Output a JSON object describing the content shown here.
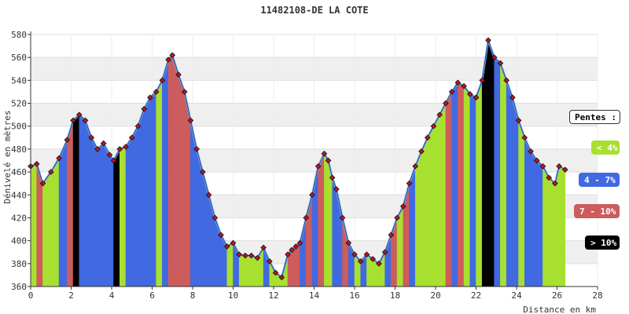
{
  "chart_data": {
    "type": "area",
    "title": "11482108-DE LA COTE",
    "xlabel": "Distance en km",
    "ylabel": "Dénivelé en mètres",
    "xlim": [
      0,
      28
    ],
    "ylim": [
      360,
      580
    ],
    "xticks": [
      0,
      2,
      4,
      6,
      8,
      10,
      12,
      14,
      16,
      18,
      20,
      22,
      24,
      26,
      28
    ],
    "yticks": [
      360,
      380,
      400,
      420,
      440,
      460,
      480,
      500,
      520,
      540,
      560,
      580
    ],
    "grid": "horizontal bands",
    "legend_placement": "right",
    "series": [
      {
        "x": [
          0.0,
          0.3,
          0.6,
          1.0,
          1.4,
          1.8,
          2.1,
          2.4,
          2.7,
          3.0,
          3.3,
          3.6,
          3.9,
          4.1,
          4.4,
          4.7,
          5.0,
          5.3,
          5.6,
          5.9,
          6.2,
          6.5,
          6.8,
          7.0,
          7.3,
          7.6,
          7.9,
          8.2,
          8.5,
          8.8,
          9.1,
          9.4,
          9.7,
          10.0,
          10.3,
          10.6,
          10.9,
          11.2,
          11.5,
          11.8,
          12.1,
          12.4,
          12.7,
          12.9,
          13.1,
          13.3,
          13.6,
          13.9,
          14.2,
          14.5,
          14.7,
          14.9,
          15.1,
          15.4,
          15.7,
          16.0,
          16.3,
          16.6,
          16.9,
          17.2,
          17.5,
          17.8,
          18.1,
          18.4,
          18.7,
          19.0,
          19.3,
          19.6,
          19.9,
          20.2,
          20.5,
          20.8,
          21.1,
          21.4,
          21.7,
          22.0,
          22.3,
          22.6,
          22.9,
          23.2,
          23.5,
          23.8,
          24.1,
          24.4,
          24.7,
          25.0,
          25.3,
          25.6,
          25.9,
          26.1,
          26.4
        ],
        "y": [
          465,
          467,
          450,
          460,
          472,
          488,
          505,
          510,
          505,
          490,
          480,
          485,
          475,
          470,
          480,
          482,
          490,
          500,
          515,
          525,
          530,
          540,
          558,
          562,
          545,
          530,
          505,
          480,
          460,
          440,
          420,
          405,
          395,
          398,
          388,
          387,
          387,
          385,
          394,
          382,
          372,
          368,
          388,
          392,
          395,
          398,
          420,
          440,
          465,
          476,
          470,
          455,
          445,
          420,
          398,
          388,
          382,
          388,
          384,
          380,
          390,
          405,
          420,
          430,
          450,
          465,
          478,
          490,
          500,
          510,
          520,
          530,
          538,
          535,
          528,
          525,
          540,
          575,
          560,
          555,
          540,
          525,
          505,
          490,
          478,
          470,
          465,
          455,
          450,
          465,
          462
        ],
        "slope_classes": [
          0,
          2,
          0,
          0,
          1,
          2,
          3,
          1,
          1,
          1,
          1,
          1,
          1,
          3,
          0,
          1,
          1,
          1,
          1,
          1,
          0,
          1,
          2,
          2,
          2,
          2,
          1,
          1,
          1,
          1,
          1,
          1,
          0,
          1,
          0,
          0,
          0,
          0,
          1,
          0,
          0,
          0,
          2,
          2,
          2,
          1,
          2,
          1,
          2,
          0,
          0,
          1,
          1,
          2,
          1,
          0,
          1,
          0,
          0,
          0,
          1,
          2,
          0,
          2,
          1,
          0,
          0,
          0,
          0,
          0,
          2,
          1,
          2,
          0,
          1,
          0,
          3,
          3,
          1,
          0,
          1,
          1,
          0,
          1,
          1,
          1,
          0,
          0,
          0,
          0,
          3
        ]
      }
    ]
  },
  "legend": {
    "title": "Pentes :",
    "items": [
      {
        "label": "< 4%",
        "color": "#a8e030",
        "text_color": "#ffffff"
      },
      {
        "label": "4 - 7%",
        "color": "#4169e1",
        "text_color": "#ffffff"
      },
      {
        "label": "7 - 10%",
        "color": "#cd5c5c",
        "text_color": "#ffffff"
      },
      {
        "label": "> 10%",
        "color": "#000000",
        "text_color": "#ffffff"
      }
    ]
  }
}
